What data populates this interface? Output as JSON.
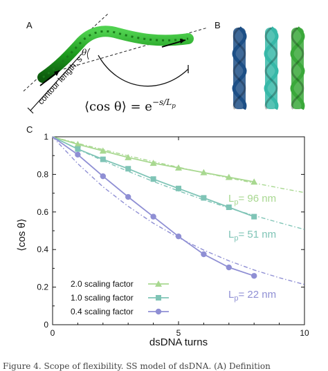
{
  "panels": {
    "a": {
      "letter": "A",
      "theta_label": "θ",
      "contour_label": "contour length, s",
      "formula_lhs": "⟨cos θ⟩ = e",
      "formula_exp": "−s/L",
      "formula_sub": "p"
    },
    "b": {
      "letter": "B",
      "helix_colors": [
        "#1d4f86",
        "#37b8a8",
        "#3aa83a"
      ]
    },
    "c": {
      "letter": "C"
    }
  },
  "caption_fragment": "Figure 4. Scope of flexibility. SS model of dsDNA. (A) Definition",
  "colors": {
    "green": "#a8d890",
    "teal": "#7fc4b6",
    "purple": "#8f8fd4"
  },
  "chart_data": {
    "type": "line",
    "xlabel": "dsDNA turns",
    "ylabel": "⟨cos θ⟩",
    "xlim": [
      0,
      10
    ],
    "ylim": [
      0,
      1
    ],
    "xticks": [
      "0",
      "5",
      "10"
    ],
    "yticks": [
      "0",
      "0.2",
      "0.4",
      "0.6",
      "0.8",
      "1"
    ],
    "grid": false,
    "legend_position": "lower-left",
    "series": [
      {
        "name": "2.0 scaling factor",
        "marker": "triangle",
        "color": "#a8d890",
        "x": [
          1,
          2,
          3,
          4,
          5,
          6,
          7,
          8
        ],
        "y": [
          0.96,
          0.925,
          0.89,
          0.86,
          0.835,
          0.81,
          0.785,
          0.76
        ],
        "fit_label": "L",
        "fit_sub": "p",
        "fit_value": "= 96 nm",
        "fit_x": [
          0,
          1,
          2,
          3,
          4,
          5,
          6,
          7,
          8,
          9,
          10
        ],
        "fit_y": [
          1,
          0.965,
          0.932,
          0.899,
          0.868,
          0.838,
          0.809,
          0.781,
          0.754,
          0.728,
          0.703
        ]
      },
      {
        "name": "1.0 scaling factor",
        "marker": "square",
        "color": "#7fc4b6",
        "x": [
          1,
          2,
          3,
          4,
          5,
          6,
          7,
          8
        ],
        "y": [
          0.935,
          0.88,
          0.83,
          0.775,
          0.725,
          0.675,
          0.625,
          0.575
        ],
        "fit_label": "L",
        "fit_sub": "p",
        "fit_value": "= 51 nm",
        "fit_x": [
          0,
          1,
          2,
          3,
          4,
          5,
          6,
          7,
          8,
          9,
          10
        ],
        "fit_y": [
          1,
          0.934,
          0.873,
          0.816,
          0.762,
          0.712,
          0.665,
          0.621,
          0.581,
          0.543,
          0.507
        ]
      },
      {
        "name": "0.4 scaling factor",
        "marker": "circle",
        "color": "#8f8fd4",
        "x": [
          1,
          2,
          3,
          4,
          5,
          6,
          7,
          8
        ],
        "y": [
          0.905,
          0.79,
          0.68,
          0.575,
          0.47,
          0.375,
          0.305,
          0.26
        ],
        "fit_label": "L",
        "fit_sub": "p",
        "fit_value": "= 22 nm",
        "fit_x": [
          0,
          1,
          2,
          3,
          4,
          5,
          6,
          7,
          8,
          9,
          10
        ],
        "fit_y": [
          1,
          0.857,
          0.734,
          0.63,
          0.54,
          0.463,
          0.397,
          0.34,
          0.291,
          0.25,
          0.214
        ]
      }
    ]
  }
}
